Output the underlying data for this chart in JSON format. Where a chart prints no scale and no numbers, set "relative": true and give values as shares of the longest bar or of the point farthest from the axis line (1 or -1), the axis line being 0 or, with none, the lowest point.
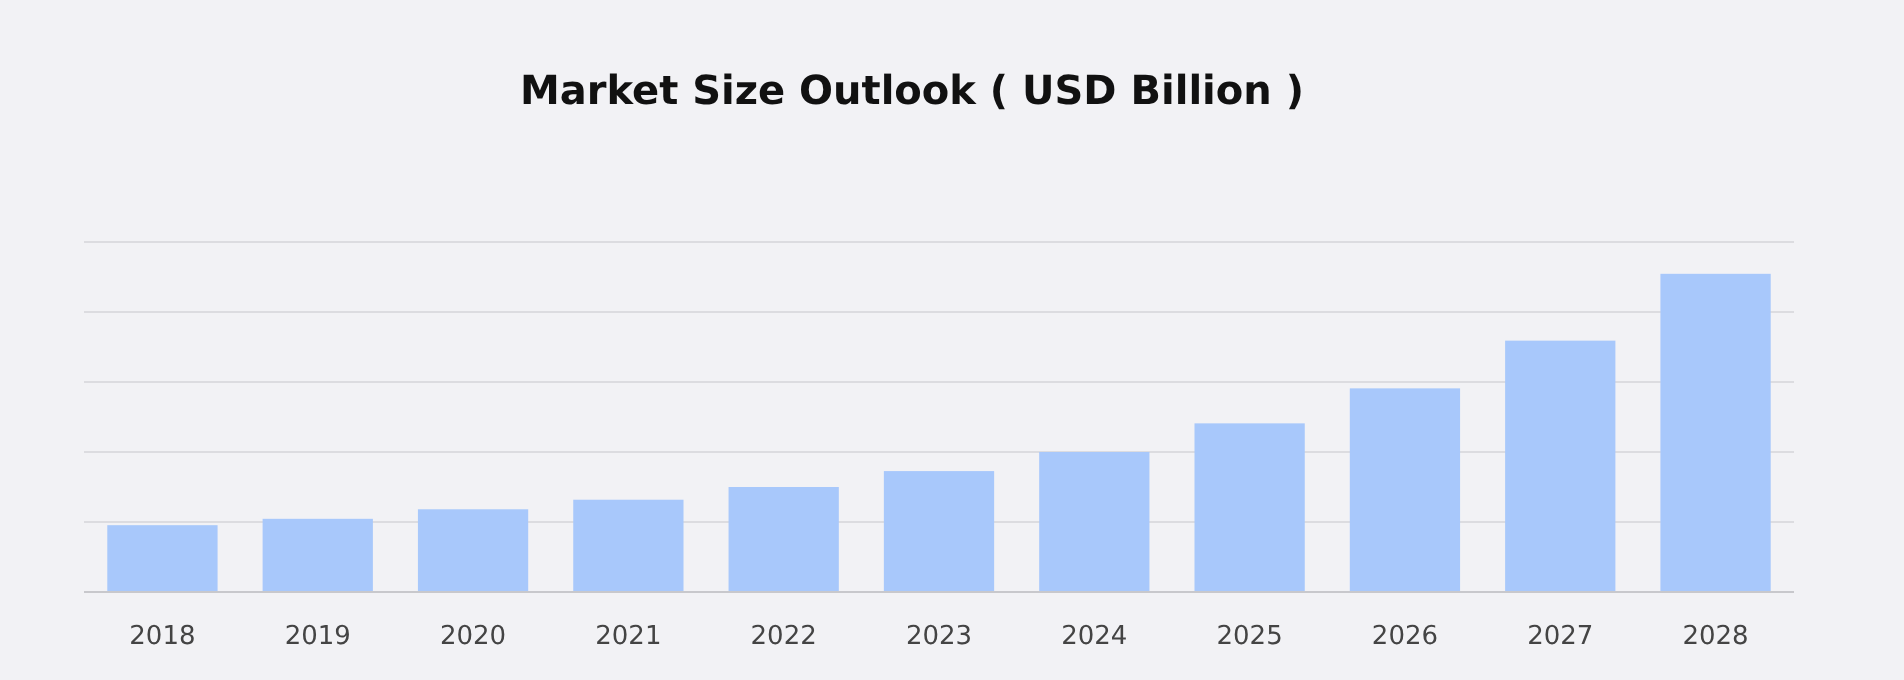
{
  "chart_data": {
    "type": "bar",
    "title": "Market Size Outlook ( USD Billion )",
    "categories": [
      "2018",
      "2019",
      "2020",
      "2021",
      "2022",
      "2023",
      "2024",
      "2025",
      "2026",
      "2027",
      "2028"
    ],
    "values": [
      0.21,
      0.23,
      0.26,
      0.29,
      0.33,
      0.38,
      0.44,
      0.53,
      0.64,
      0.79,
      1
    ],
    "color": "#a8c8fb",
    "relative": true,
    "grid": "y"
  }
}
